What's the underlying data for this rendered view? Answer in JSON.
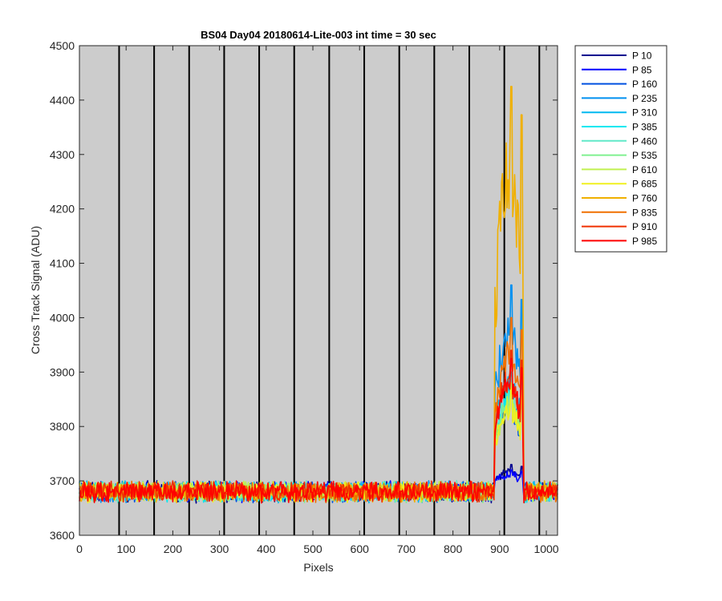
{
  "chart_data": {
    "type": "line",
    "title": "BS04 Day04 20180614-Lite-003 int time = 30 sec",
    "xlabel": "Pixels",
    "ylabel": "Cross Track Signal (ADU)",
    "xlim": [
      0,
      1024
    ],
    "ylim": [
      3600,
      4500
    ],
    "xticks": [
      0,
      100,
      200,
      300,
      400,
      500,
      600,
      700,
      800,
      900,
      1000
    ],
    "yticks": [
      3600,
      3700,
      3800,
      3900,
      4000,
      4100,
      4200,
      4300,
      4400,
      4500
    ],
    "vertical_lines_x": [
      85,
      160,
      235,
      310,
      385,
      460,
      535,
      610,
      685,
      760,
      835,
      910,
      985
    ],
    "grid": false,
    "background": "#cccccc",
    "legend_position": "outside-right-top",
    "baseline_signal": 3680,
    "spot_region_x": [
      888,
      952
    ],
    "series": [
      {
        "name": "P 10",
        "color": "#00008f",
        "spot_peak": 3730
      },
      {
        "name": "P 85",
        "color": "#0000ff",
        "spot_peak": 3720
      },
      {
        "name": "P 160",
        "color": "#0050e0",
        "spot_peak": 3880
      },
      {
        "name": "P 235",
        "color": "#0090f0",
        "spot_peak": 4060
      },
      {
        "name": "P 310",
        "color": "#00b8f0",
        "spot_peak": 3930
      },
      {
        "name": "P 385",
        "color": "#00e8f0",
        "spot_peak": 3900
      },
      {
        "name": "P 460",
        "color": "#60e8c8",
        "spot_peak": 3890
      },
      {
        "name": "P 535",
        "color": "#80f090",
        "spot_peak": 3880
      },
      {
        "name": "P 610",
        "color": "#c0f050",
        "spot_peak": 3880
      },
      {
        "name": "P 685",
        "color": "#f0f020",
        "spot_peak": 3870
      },
      {
        "name": "P 760",
        "color": "#f0b000",
        "spot_peak": 4425
      },
      {
        "name": "P 835",
        "color": "#f07000",
        "spot_peak": 4000
      },
      {
        "name": "P 910",
        "color": "#f03000",
        "spot_peak": 3940
      },
      {
        "name": "P 985",
        "color": "#ff0000",
        "spot_peak": 3925
      }
    ]
  }
}
